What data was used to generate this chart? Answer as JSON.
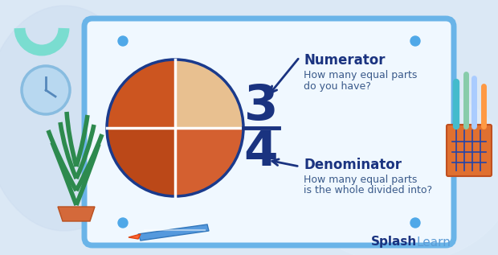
{
  "bg_color": "#dbe8f5",
  "card_color": "#f0f8ff",
  "card_border_color": "#6ab4e8",
  "fraction_color": "#1a3380",
  "label_color": "#1a3380",
  "desc_color": "#3a5a8a",
  "arrow_color": "#1a3380",
  "dot_color": "#4fa8e8",
  "splash_color": "#1a3380",
  "learn_color": "#5b9bd5",
  "numerator": "3",
  "denominator": "4",
  "numerator_label": "Numerator",
  "numerator_desc_1": "How many equal parts",
  "numerator_desc_2": "do you have?",
  "denominator_label": "Denominator",
  "denominator_desc_1": "How many equal parts",
  "denominator_desc_2": "is the whole divided into?",
  "pizza_colors": [
    "#d4622a",
    "#e8834a",
    "#cc5a22",
    "#f5ede0"
  ],
  "pizza_border": "#1a3a8c",
  "teal_color": "#7addd0",
  "clock_face": "#b8d8f0",
  "clock_border": "#88bce0",
  "plant_green": "#2d8a4e",
  "plant_dark": "#1e6638",
  "pot_color": "#d4693a",
  "marker_blue": "#4488cc",
  "marker_tip": "#ff6633",
  "holder_orange": "#e07030",
  "holder_blue": "#4499cc",
  "pen1": "#44bbcc",
  "pen2": "#99ddaa",
  "pen3": "#ff8844",
  "pen4": "#3366bb"
}
